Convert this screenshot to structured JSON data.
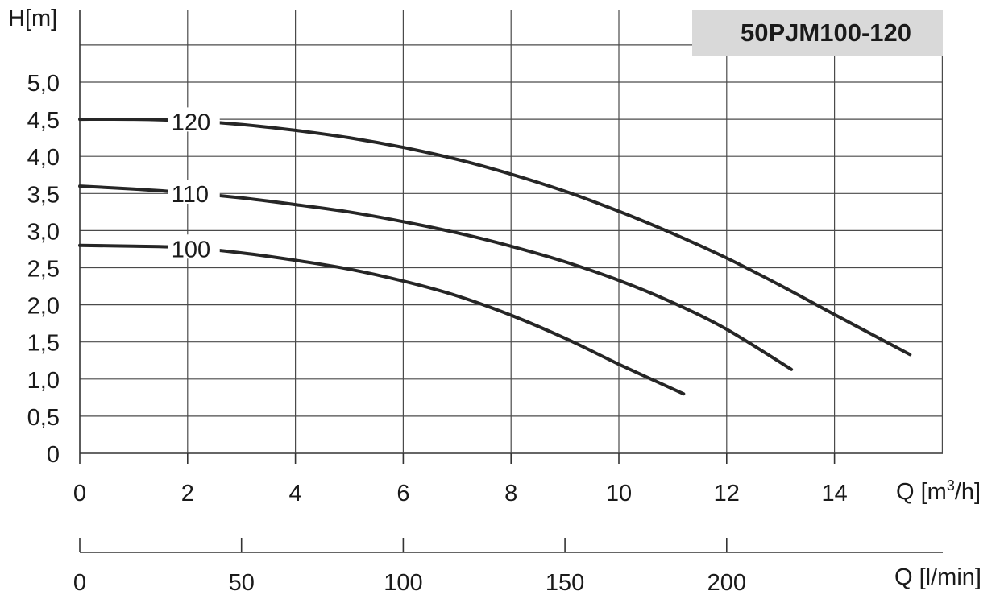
{
  "chart_data": {
    "type": "line",
    "title": "50PJM100-120",
    "ylabel": "H[m]",
    "xlabel": "Q [m³/h]",
    "xlabel_main": "Q [m",
    "xlabel_sup": "3",
    "xlabel_tail": "/h]",
    "x2label": "Q [l/min]",
    "ylim": [
      0,
      5.5
    ],
    "xlim": [
      0,
      16
    ],
    "grid": true,
    "y_ticks": [
      "0",
      "0,5",
      "1,0",
      "1,5",
      "2,0",
      "2,5",
      "3,0",
      "3,5",
      "4,0",
      "4,5",
      "5,0"
    ],
    "y_tick_values": [
      0,
      0.5,
      1.0,
      1.5,
      2.0,
      2.5,
      3.0,
      3.5,
      4.0,
      4.5,
      5.0
    ],
    "x_ticks": [
      "0",
      "2",
      "4",
      "6",
      "8",
      "10",
      "12",
      "14"
    ],
    "x_tick_values": [
      0,
      2,
      4,
      6,
      8,
      10,
      12,
      14
    ],
    "x2_ticks": [
      "0",
      "50",
      "100",
      "150",
      "200"
    ],
    "x2_tick_values": [
      0,
      50,
      100,
      150,
      200
    ],
    "series": [
      {
        "name": "120",
        "x": [
          0,
          1,
          2,
          3,
          4,
          5,
          6,
          7,
          8,
          9,
          10,
          11,
          12,
          13,
          14,
          15.4
        ],
        "y": [
          4.5,
          4.5,
          4.48,
          4.43,
          4.35,
          4.25,
          4.12,
          3.96,
          3.76,
          3.53,
          3.26,
          2.96,
          2.63,
          2.26,
          1.87,
          1.33
        ],
        "label_x": 1.7
      },
      {
        "name": "110",
        "x": [
          0,
          1,
          2,
          3,
          4,
          5,
          6,
          7,
          8,
          9,
          10,
          11,
          12,
          13.2
        ],
        "y": [
          3.6,
          3.56,
          3.51,
          3.44,
          3.35,
          3.25,
          3.12,
          2.97,
          2.79,
          2.58,
          2.33,
          2.03,
          1.67,
          1.13
        ],
        "label_x": 1.7
      },
      {
        "name": "100",
        "x": [
          0,
          1,
          2,
          3,
          4,
          5,
          6,
          7,
          8,
          9,
          10,
          11.2
        ],
        "y": [
          2.8,
          2.79,
          2.77,
          2.7,
          2.6,
          2.48,
          2.32,
          2.12,
          1.86,
          1.55,
          1.2,
          0.8
        ],
        "label_x": 1.7
      }
    ]
  }
}
